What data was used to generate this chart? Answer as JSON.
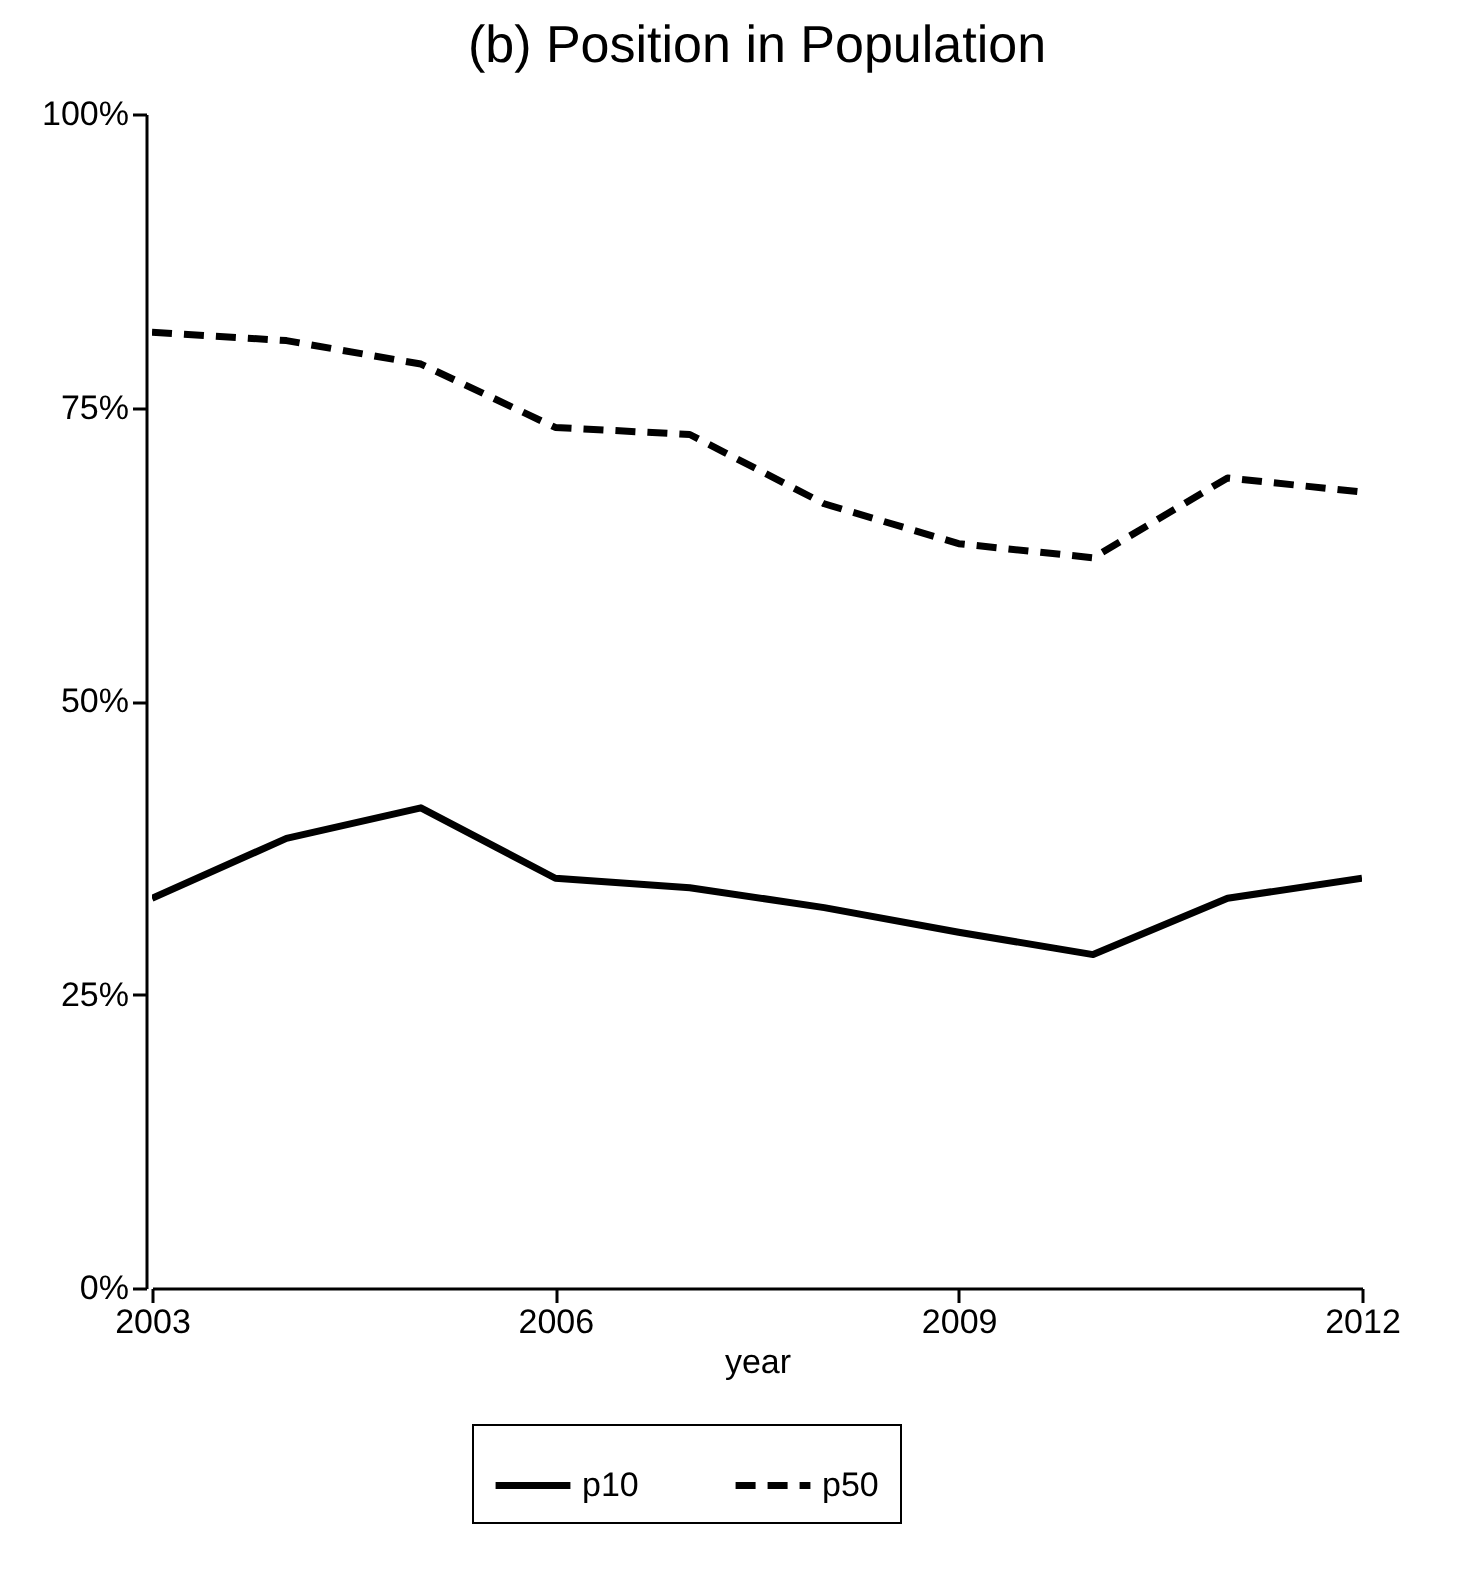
{
  "chart_data": {
    "type": "line",
    "title": "(b) Position in Population",
    "xlabel": "year",
    "x": [
      2003,
      2004,
      2005,
      2006,
      2007,
      2008,
      2009,
      2010,
      2011,
      2012
    ],
    "series": [
      {
        "name": "p10",
        "color": "#000000",
        "line_style": "solid",
        "values": [
          33.2,
          38.3,
          40.9,
          34.9,
          34.1,
          32.4,
          30.3,
          28.4,
          33.2,
          34.9
        ]
      },
      {
        "name": "p50",
        "color": "#000000",
        "line_style": "dashed",
        "values": [
          81.4,
          80.7,
          78.7,
          73.3,
          72.7,
          66.8,
          63.4,
          62.2,
          69.0,
          67.8
        ]
      }
    ],
    "xlim": [
      2003,
      2012
    ],
    "xticks": [
      2003,
      2006,
      2009,
      2012
    ],
    "ylim": [
      0,
      100
    ],
    "yticks": [
      {
        "value": 0,
        "label": "0%"
      },
      {
        "value": 25,
        "label": "25%"
      },
      {
        "value": 50,
        "label": "50%"
      },
      {
        "value": 75,
        "label": "75%"
      },
      {
        "value": 100,
        "label": "100%"
      }
    ],
    "grid": false,
    "legend": "bottom",
    "marker": "none"
  }
}
